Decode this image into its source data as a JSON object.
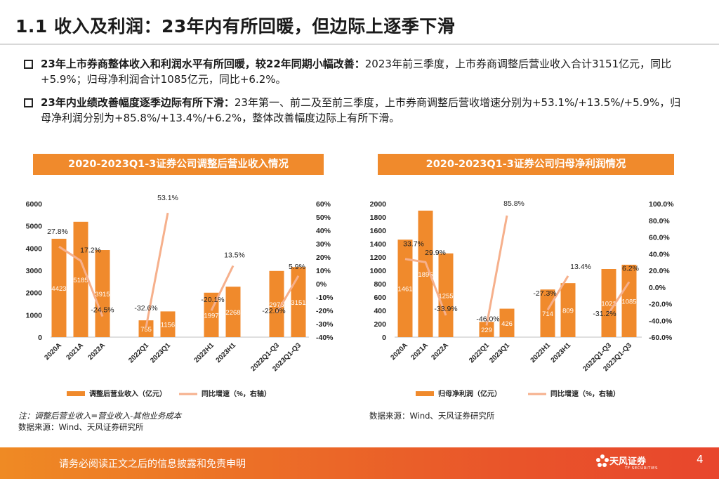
{
  "title": "1.1 收入及利润：23年内有所回暖，但边际上逐季下滑",
  "bullets": [
    {
      "bold": "23年上市券商整体收入和利润水平有所回暖，较22年同期小幅改善：",
      "text": "2023年前三季度，上市券商调整后营业收入合计3151亿元，同比+5.9%；归母净利润合计1085亿元，同比+6.2%。"
    },
    {
      "bold": "23年内业绩改善幅度逐季边际有所下滑：",
      "text": "23年第一、前二及至前三季度，上市券商调整后营收增速分别为+53.1%/+13.5%/+5.9%，归母净利润分别为+85.8%/+13.4%/+6.2%，整体改善幅度边际上有所下滑。"
    }
  ],
  "chart_data": [
    {
      "type": "bar",
      "title": "2020-2023Q1-3证券公司调整后营业收入情况",
      "categories": [
        "2020A",
        "2021A",
        "2022A",
        "2022Q1",
        "2023Q1",
        "2022H1",
        "2023H1",
        "2022Q1-Q3",
        "2023Q1-Q3"
      ],
      "series": [
        {
          "name": "调整后营业收入（亿元）",
          "type": "bar",
          "axis": "left",
          "values": [
            4423,
            5185,
            3915,
            755,
            1156,
            1997,
            2268,
            2975,
            3151
          ]
        },
        {
          "name": "同比增速（%，右轴）",
          "type": "line",
          "axis": "right",
          "values": [
            27.8,
            17.2,
            -24.5,
            -32.6,
            53.1,
            -20.1,
            13.5,
            -22.0,
            5.9
          ]
        }
      ],
      "bar_labels": [
        "4423",
        "5185",
        "3915",
        "755",
        "1156",
        "1997",
        "2268",
        "2975",
        "3151"
      ],
      "line_labels": [
        "27.8%",
        "17.2%",
        "-24.5%",
        "-32.6%",
        "53.1%",
        "-20.1%",
        "13.5%",
        "-22.0%",
        "5.9%"
      ],
      "ylim": [
        0,
        6000
      ],
      "y_ticks": [
        "0",
        "1000",
        "2000",
        "3000",
        "4000",
        "5000",
        "6000"
      ],
      "y2lim": [
        -40,
        60
      ],
      "y2_ticks": [
        "-40%",
        "-30%",
        "-20%",
        "-10%",
        "0%",
        "10%",
        "20%",
        "30%",
        "40%",
        "50%",
        "60%"
      ],
      "legend": "bottom"
    },
    {
      "type": "bar",
      "title": "2020-2023Q1-3证券公司归母净利润情况",
      "categories": [
        "2020A",
        "2021A",
        "2022A",
        "2022Q1",
        "2023Q1",
        "2022H1",
        "2023H1",
        "2022Q1-Q3",
        "2023Q1-Q3"
      ],
      "series": [
        {
          "name": "归母净利润（亿元）",
          "type": "bar",
          "axis": "left",
          "values": [
            1461,
            1896,
            1255,
            229,
            426,
            714,
            809,
            1021,
            1085
          ]
        },
        {
          "name": "同比增速（%，右轴）",
          "type": "line",
          "axis": "right",
          "values": [
            33.7,
            29.9,
            -33.9,
            -46.0,
            85.8,
            -27.3,
            13.4,
            -31.2,
            6.2
          ]
        }
      ],
      "bar_labels": [
        "1461",
        "1896",
        "1255",
        "229",
        "426",
        "714",
        "809",
        "1021",
        "1085"
      ],
      "line_labels": [
        "33.7%",
        "29.9%",
        "-33.9%",
        "-46.0%",
        "85.8%",
        "-27.3%",
        "13.4%",
        "-31.2%",
        "6.2%"
      ],
      "ylim": [
        0,
        2000
      ],
      "y_ticks": [
        "0",
        "200",
        "400",
        "600",
        "800",
        "1000",
        "1200",
        "1400",
        "1600",
        "1800",
        "2000"
      ],
      "y2lim": [
        -60,
        100
      ],
      "y2_ticks": [
        "-60.0%",
        "-40.0%",
        "-20.0%",
        "0.0%",
        "20.0%",
        "40.0%",
        "60.0%",
        "80.0%",
        "100.0%"
      ],
      "legend": "bottom"
    }
  ],
  "notes_left": {
    "line1": "注：调整后营业收入=营业收入-其他业务成本",
    "line2": "数据来源：Wind、天风证券研究所"
  },
  "notes_right": "数据来源：Wind、天风证券研究所",
  "footer": {
    "disclaimer": "请务必阅读正文之后的信息披露和免责申明",
    "logo_text": "天风证券",
    "logo_sub": "TF SECURITIES",
    "page": "4"
  },
  "colors": {
    "bar": "#f08a2c",
    "line": "#f6b08c",
    "accent": "#f08a2c"
  }
}
